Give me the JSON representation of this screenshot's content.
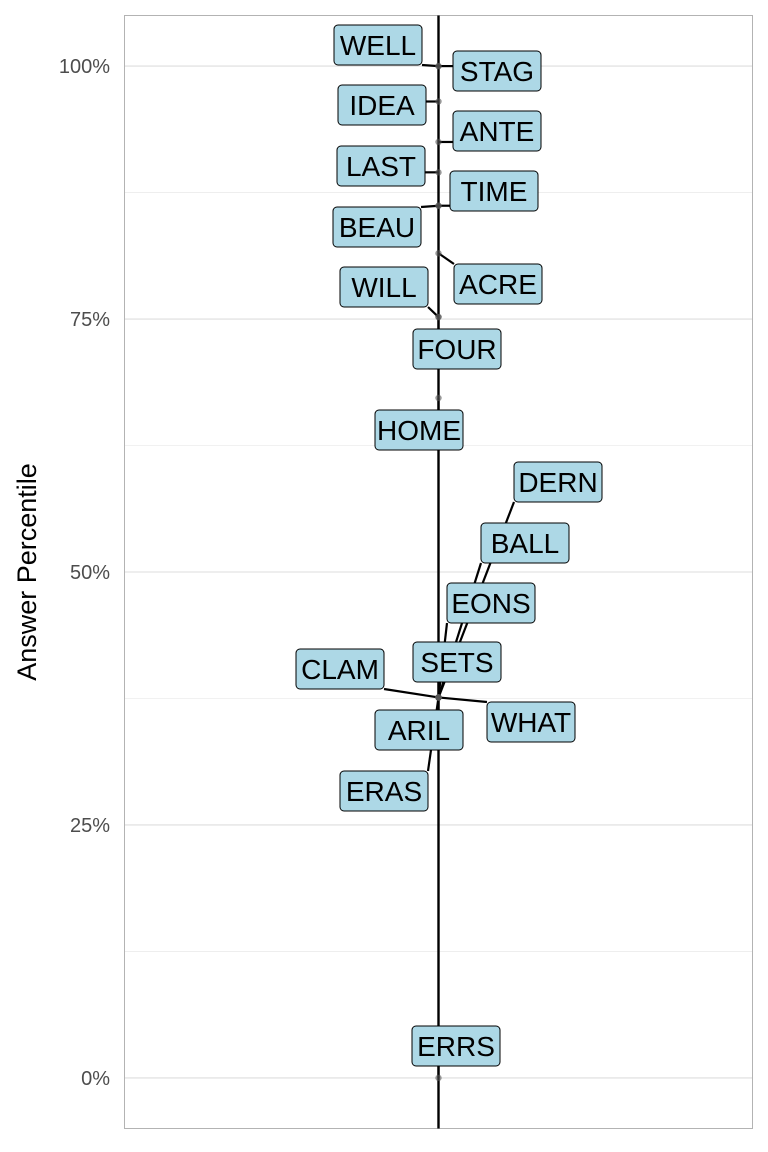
{
  "chart_data": {
    "type": "scatter",
    "ylabel": "Answer Percentile",
    "xlabel": "",
    "y_unit": "%",
    "ylim": [
      -0.05,
      1.05
    ],
    "y_ticks": [
      0,
      0.25,
      0.5,
      0.75,
      1.0
    ],
    "y_tick_labels": [
      "0%",
      "25%",
      "50%",
      "75%",
      "100%"
    ],
    "grid": true,
    "vertical_reference_line": true,
    "label_fill": "#add8e6",
    "point_color": "#555555",
    "points": [
      {
        "label": "WELL",
        "y": 1.0
      },
      {
        "label": "STAG",
        "y": 1.0
      },
      {
        "label": "IDEA",
        "y": 0.965
      },
      {
        "label": "ANTE",
        "y": 0.925
      },
      {
        "label": "LAST",
        "y": 0.895
      },
      {
        "label": "TIME",
        "y": 0.862
      },
      {
        "label": "BEAU",
        "y": 0.862
      },
      {
        "label": "ACRE",
        "y": 0.815
      },
      {
        "label": "WILL",
        "y": 0.752
      },
      {
        "label": "FOUR",
        "y": 0.752
      },
      {
        "label": "HOME",
        "y": 0.672
      },
      {
        "label": "DERN",
        "y": 0.376
      },
      {
        "label": "BALL",
        "y": 0.376
      },
      {
        "label": "EONS",
        "y": 0.376
      },
      {
        "label": "SETS",
        "y": 0.376
      },
      {
        "label": "CLAM",
        "y": 0.376
      },
      {
        "label": "WHAT",
        "y": 0.376
      },
      {
        "label": "ARIL",
        "y": 0.376
      },
      {
        "label": "ERAS",
        "y": 0.376
      },
      {
        "label": "ERRS",
        "y": 0.0
      }
    ]
  }
}
